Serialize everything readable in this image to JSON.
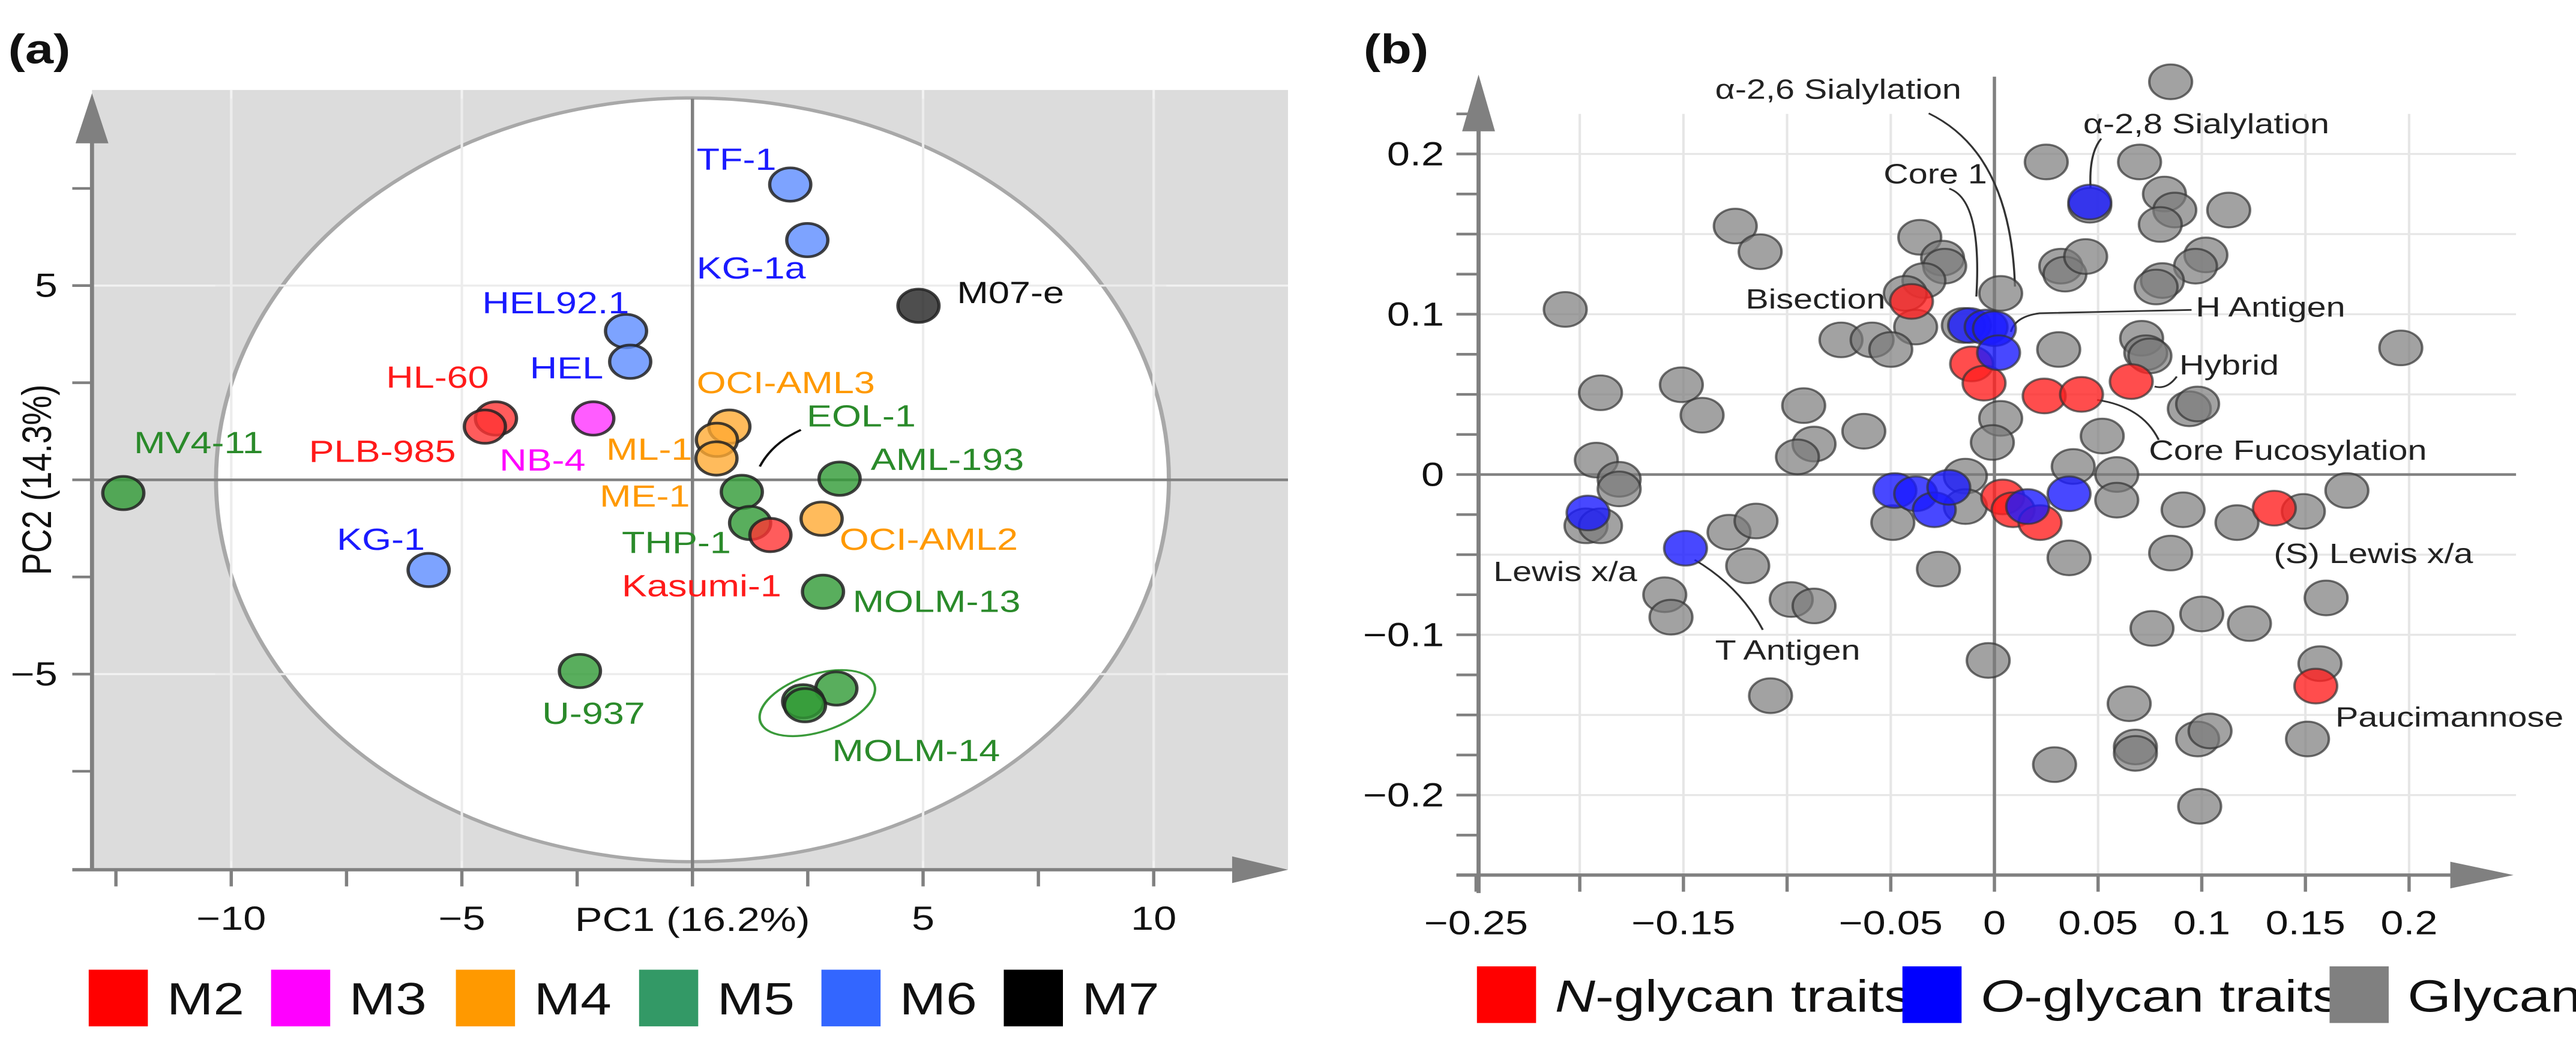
{
  "chart_data": [
    {
      "type": "scatter",
      "panel_label": "(a)",
      "xlabel": "PC1 (16.2%)",
      "ylabel": "PC2 (14.3%)",
      "xlim": [
        -13,
        12.5
      ],
      "ylim": [
        -10,
        10
      ],
      "xticks": [
        {
          "v": -10,
          "label": "−10"
        },
        {
          "v": -5,
          "label": "−5"
        },
        {
          "v": 5,
          "label": "5"
        },
        {
          "v": 10,
          "label": "10"
        }
      ],
      "yticks": [
        {
          "v": 5,
          "label": "5"
        },
        {
          "v": -5,
          "label": "−5"
        }
      ],
      "grid": true,
      "legend_placement": "bottom",
      "groups": [
        {
          "name": "M2",
          "color": "#ff0000",
          "text_color": "#ff1a1a"
        },
        {
          "name": "M3",
          "color": "#ff00ff",
          "text_color": "#ff00ff"
        },
        {
          "name": "M4",
          "color": "#ff9900",
          "text_color": "#ff9900"
        },
        {
          "name": "M5",
          "color": "#339966",
          "text_color": "#2a8a2a"
        },
        {
          "name": "M6",
          "color": "#3366ff",
          "text_color": "#1a1aff"
        },
        {
          "name": "M7",
          "color": "#000000",
          "text_color": "#111111"
        }
      ],
      "points": [
        {
          "label": "TF-1",
          "group": "M6",
          "x": 2.12,
          "y": 7.6
        },
        {
          "label": "KG-1a",
          "group": "M6",
          "x": 2.49,
          "y": 6.17
        },
        {
          "label": "M07-e",
          "group": "M7",
          "x": 4.9,
          "y": 4.48
        },
        {
          "label": "HEL92.1",
          "group": "M6",
          "x": -1.44,
          "y": 3.83
        },
        {
          "label": "HEL",
          "group": "M6",
          "x": -1.35,
          "y": 3.04
        },
        {
          "label": "HL-60",
          "group": "M2",
          "x": -4.26,
          "y": 1.58
        },
        {
          "label": "PLB-985",
          "group": "M2",
          "x": -4.5,
          "y": 1.37
        },
        {
          "label": "NB-4",
          "group": "M3",
          "x": -2.15,
          "y": 1.58
        },
        {
          "label": "OCI-AML3",
          "group": "M4",
          "x": 0.8,
          "y": 1.37
        },
        {
          "label": "ML-1",
          "group": "M4",
          "x": 0.53,
          "y": 1.03
        },
        {
          "label": "ME-1",
          "group": "M4",
          "x": 0.52,
          "y": 0.55
        },
        {
          "label": "EOL-1",
          "group": "M5",
          "x": 1.07,
          "y": -0.31
        },
        {
          "label": "THP-1",
          "group": "M5",
          "x": 1.25,
          "y": -1.11
        },
        {
          "label": "Kasumi-1",
          "group": "M2",
          "x": 1.69,
          "y": -1.42
        },
        {
          "label": "AML-193",
          "group": "M5",
          "x": 3.19,
          "y": 0.03
        },
        {
          "label": "OCI-AML2",
          "group": "M4",
          "x": 2.8,
          "y": -1.0
        },
        {
          "label": "MOLM-13",
          "group": "M5",
          "x": 2.83,
          "y": -2.88
        },
        {
          "label": "MOLM-14",
          "group": "M5",
          "x": 3.12,
          "y": -5.37
        },
        {
          "label": "",
          "group": "M5",
          "x": 2.4,
          "y": -5.7
        },
        {
          "label": "",
          "group": "M5",
          "x": 2.44,
          "y": -5.8
        },
        {
          "label": "U-937",
          "group": "M5",
          "x": -2.44,
          "y": -4.92
        },
        {
          "label": "KG-1",
          "group": "M6",
          "x": -5.72,
          "y": -2.32
        },
        {
          "label": "MV4-11",
          "group": "M5",
          "x": -12.34,
          "y": -0.34
        }
      ]
    },
    {
      "type": "scatter",
      "panel_label": "(b)",
      "xlabel": "",
      "ylabel": "",
      "xlim": [
        -0.25,
        0.25
      ],
      "ylim": [
        -0.25,
        0.25
      ],
      "xticks": [
        {
          "v": -0.25,
          "label": "−0.25"
        },
        {
          "v": -0.15,
          "label": "−0.15"
        },
        {
          "v": -0.05,
          "label": "−0.05"
        },
        {
          "v": 0,
          "label": "0"
        },
        {
          "v": 0.05,
          "label": "0.05"
        },
        {
          "v": 0.1,
          "label": "0.1"
        },
        {
          "v": 0.15,
          "label": "0.15"
        },
        {
          "v": 0.2,
          "label": "0.2"
        }
      ],
      "yticks": [
        {
          "v": 0.2,
          "label": "0.2"
        },
        {
          "v": 0.1,
          "label": "0.1"
        },
        {
          "v": 0,
          "label": "0"
        },
        {
          "v": -0.1,
          "label": "−0.1"
        },
        {
          "v": -0.2,
          "label": "−0.2"
        }
      ],
      "grid": true,
      "legend_placement": "bottom",
      "series": [
        {
          "name": "Glycans",
          "italic_prefix": "",
          "suffix": "Glycans",
          "color": "#808080",
          "points": [
            [
              0.085,
              0.245
            ],
            [
              0.025,
              0.195
            ],
            [
              0.07,
              0.195
            ],
            [
              0.046,
              0.168
            ],
            [
              0.082,
              0.175
            ],
            [
              0.087,
              0.165
            ],
            [
              0.08,
              0.156
            ],
            [
              0.113,
              0.165
            ],
            [
              -0.125,
              0.155
            ],
            [
              -0.113,
              0.139
            ],
            [
              -0.036,
              0.148
            ],
            [
              -0.025,
              0.135
            ],
            [
              -0.024,
              0.13
            ],
            [
              -0.034,
              0.121
            ],
            [
              0.032,
              0.13
            ],
            [
              0.034,
              0.125
            ],
            [
              0.044,
              0.136
            ],
            [
              0.102,
              0.137
            ],
            [
              0.097,
              0.13
            ],
            [
              0.081,
              0.121
            ],
            [
              0.078,
              0.117
            ],
            [
              0.003,
              0.113
            ],
            [
              -0.043,
              0.113
            ],
            [
              -0.038,
              0.092
            ],
            [
              -0.207,
              0.103
            ],
            [
              -0.074,
              0.084
            ],
            [
              -0.059,
              0.084
            ],
            [
              -0.05,
              0.078
            ],
            [
              -0.015,
              0.093
            ],
            [
              0.031,
              0.078
            ],
            [
              0.071,
              0.085
            ],
            [
              0.073,
              0.076
            ],
            [
              0.075,
              0.074
            ],
            [
              0.196,
              0.079
            ],
            [
              -0.19,
              0.051
            ],
            [
              -0.151,
              0.056
            ],
            [
              -0.141,
              0.037
            ],
            [
              -0.092,
              0.043
            ],
            [
              -0.063,
              0.027
            ],
            [
              -0.087,
              0.019
            ],
            [
              -0.095,
              0.011
            ],
            [
              0.003,
              0.035
            ],
            [
              -0.001,
              0.02
            ],
            [
              0.052,
              0.024
            ],
            [
              0.094,
              0.041
            ],
            [
              0.098,
              0.044
            ],
            [
              0.038,
              0.005
            ],
            [
              0.059,
              0
            ],
            [
              0.059,
              -0.016
            ],
            [
              -0.192,
              0.009
            ],
            [
              -0.181,
              -0.003
            ],
            [
              -0.181,
              -0.009
            ],
            [
              -0.197,
              -0.032
            ],
            [
              -0.19,
              -0.032
            ],
            [
              -0.128,
              -0.036
            ],
            [
              -0.115,
              -0.029
            ],
            [
              -0.119,
              -0.057
            ],
            [
              -0.159,
              -0.075
            ],
            [
              -0.156,
              -0.089
            ],
            [
              -0.098,
              -0.078
            ],
            [
              -0.087,
              -0.082
            ],
            [
              -0.108,
              -0.138
            ],
            [
              -0.049,
              -0.03
            ],
            [
              -0.014,
              -0.001
            ],
            [
              -0.014,
              -0.02
            ],
            [
              -0.027,
              -0.059
            ],
            [
              0.036,
              -0.052
            ],
            [
              0.091,
              -0.022
            ],
            [
              0.117,
              -0.03
            ],
            [
              0.149,
              -0.023
            ],
            [
              0.17,
              -0.01
            ],
            [
              0.085,
              -0.049
            ],
            [
              0.16,
              -0.077
            ],
            [
              0.1,
              -0.087
            ],
            [
              0.076,
              -0.096
            ],
            [
              0.123,
              -0.093
            ],
            [
              -0.003,
              -0.116
            ],
            [
              0.157,
              -0.118
            ],
            [
              0.065,
              -0.143
            ],
            [
              0.068,
              -0.17
            ],
            [
              0.068,
              -0.174
            ],
            [
              0.029,
              -0.181
            ],
            [
              0.098,
              -0.165
            ],
            [
              0.104,
              -0.16
            ],
            [
              0.151,
              -0.165
            ],
            [
              0.099,
              -0.207
            ]
          ]
        },
        {
          "name": "N-glycan traits",
          "italic_prefix": "N",
          "suffix": "-glycan  traits",
          "color": "#ff0000",
          "points": [
            [
              -0.04,
              0.108
            ],
            [
              -0.011,
              0.069
            ],
            [
              -0.005,
              0.057
            ],
            [
              0.024,
              0.049
            ],
            [
              0.042,
              0.05
            ],
            [
              0.066,
              0.058
            ],
            [
              0.004,
              -0.014
            ],
            [
              0.009,
              -0.022
            ],
            [
              0.022,
              -0.03
            ],
            [
              0.135,
              -0.021
            ],
            [
              0.155,
              -0.132
            ]
          ]
        },
        {
          "name": "O-glycan traits",
          "italic_prefix": "O",
          "suffix": "-glycan  traits",
          "color": "#0000ff",
          "points": [
            [
              0.046,
              0.17
            ],
            [
              -0.012,
              0.093
            ],
            [
              -0.004,
              0.092
            ],
            [
              0,
              0.091
            ],
            [
              0.002,
              0.076
            ],
            [
              -0.196,
              -0.024
            ],
            [
              -0.149,
              -0.046
            ],
            [
              -0.048,
              -0.01
            ],
            [
              -0.038,
              -0.012
            ],
            [
              -0.029,
              -0.022
            ],
            [
              -0.022,
              -0.008
            ],
            [
              0.016,
              -0.02
            ],
            [
              0.036,
              -0.012
            ]
          ]
        }
      ],
      "legend_order": [
        1,
        2,
        0
      ],
      "annotations": [
        "α-2,6 Sialylation",
        "α-2,8 Sialylation",
        "Core 1",
        "Bisection",
        "H Antigen",
        "Hybrid",
        "Core Fucosylation",
        "(S) Lewis x/a",
        "Lewis x/a",
        "T Antigen",
        "Paucimannose"
      ]
    }
  ]
}
